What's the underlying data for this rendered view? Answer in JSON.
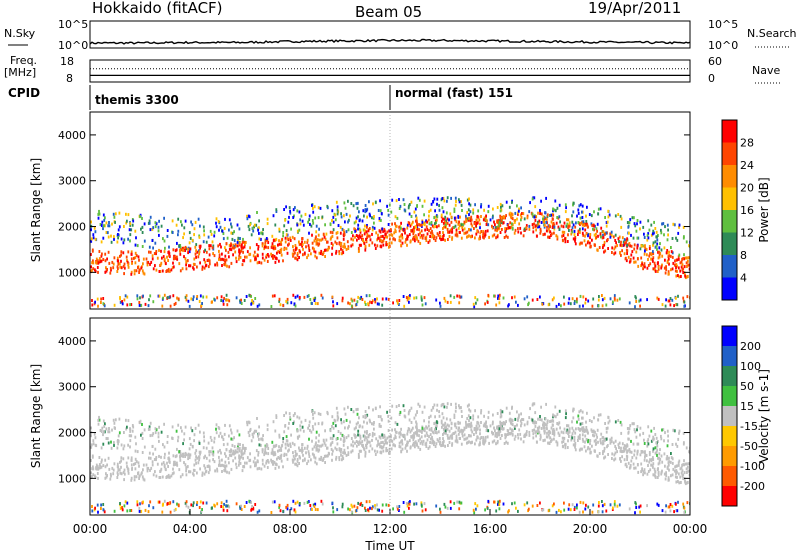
{
  "header": {
    "station": "Hokkaido (fitACF)",
    "beam": "Beam 05",
    "date": "19/Apr/2011"
  },
  "chart_data": [
    {
      "type": "line",
      "panel": "nsky-nsearch",
      "left_label": "N.Sky",
      "right_label": "N.Search",
      "left_ticks": [
        "10^5",
        "10^0"
      ],
      "right_ticks": [
        "10^5",
        "10^0"
      ],
      "x": [
        0,
        2,
        4,
        6,
        8,
        10,
        12,
        14,
        16,
        18,
        20,
        22,
        24
      ],
      "series": [
        {
          "values": [
            4,
            4,
            5,
            5,
            7,
            8,
            9,
            9,
            8,
            7,
            6,
            5,
            4
          ]
        }
      ]
    },
    {
      "type": "line",
      "panel": "freq-nave",
      "left_label_top": "Freq.",
      "left_label_unit": "[MHz]",
      "right_label": "Nave",
      "left_ticks": [
        "18",
        "8"
      ],
      "right_ticks": [
        "60",
        "0"
      ],
      "series": [
        {
          "values": [
            11,
            11,
            11,
            11,
            11,
            11,
            11,
            11,
            11,
            11,
            11,
            11,
            11
          ]
        },
        {
          "values": [
            36,
            36,
            36,
            36,
            36,
            36,
            36,
            36,
            36,
            36,
            36,
            36,
            36
          ]
        }
      ]
    },
    {
      "type": "table",
      "panel": "cpid",
      "label": "CPID",
      "entries": [
        {
          "start_hour": 0,
          "text": "themis 3300"
        },
        {
          "start_hour": 12,
          "text": "normal (fast) 151"
        }
      ]
    },
    {
      "type": "heatmap",
      "panel": "power",
      "ylabel": "Slant Range [km]",
      "ylim": [
        200,
        4500
      ],
      "yticks": [
        1000,
        2000,
        3000,
        4000
      ],
      "colorbar_label": "Power [dB]",
      "colorbar_ticks": [
        "28",
        "24",
        "20",
        "16",
        "12",
        "8",
        "4"
      ],
      "colorbar_colors": [
        "#0000ff",
        "#2060c8",
        "#2e8b57",
        "#5fbf3f",
        "#ffc000",
        "#ff8c00",
        "#ff4500",
        "#ff0000"
      ],
      "bands": [
        {
          "range_lo": 1000,
          "range_hi": 1500,
          "center": [
            1250,
            1200,
            1300,
            1400,
            1500,
            1650,
            1800,
            1950,
            2000,
            2050,
            1800,
            1350,
            1100
          ]
        },
        {
          "range_lo": 1800,
          "range_hi": 2500,
          "center": [
            2000,
            1900,
            1800,
            1900,
            2100,
            2200,
            2250,
            2300,
            2250,
            2300,
            2100,
            1800,
            1700
          ]
        }
      ]
    },
    {
      "type": "heatmap",
      "panel": "velocity",
      "ylabel": "Slant Range [km]",
      "ylim": [
        200,
        4500
      ],
      "yticks": [
        1000,
        2000,
        3000,
        4000
      ],
      "xlabel": "Time UT",
      "xticks": [
        "00:00",
        "04:00",
        "08:00",
        "12:00",
        "16:00",
        "20:00",
        "00:00"
      ],
      "colorbar_label": "Velocity [m s-1]",
      "colorbar_ticks": [
        "200",
        "100",
        "50",
        "15",
        "-15",
        "-50",
        "-100",
        "-200"
      ],
      "colorbar_colors": [
        "#ff0000",
        "#ff5a00",
        "#ff9b00",
        "#ffc800",
        "#c0c0c0",
        "#40c040",
        "#2e8b57",
        "#2060c8",
        "#0000ff"
      ]
    }
  ]
}
